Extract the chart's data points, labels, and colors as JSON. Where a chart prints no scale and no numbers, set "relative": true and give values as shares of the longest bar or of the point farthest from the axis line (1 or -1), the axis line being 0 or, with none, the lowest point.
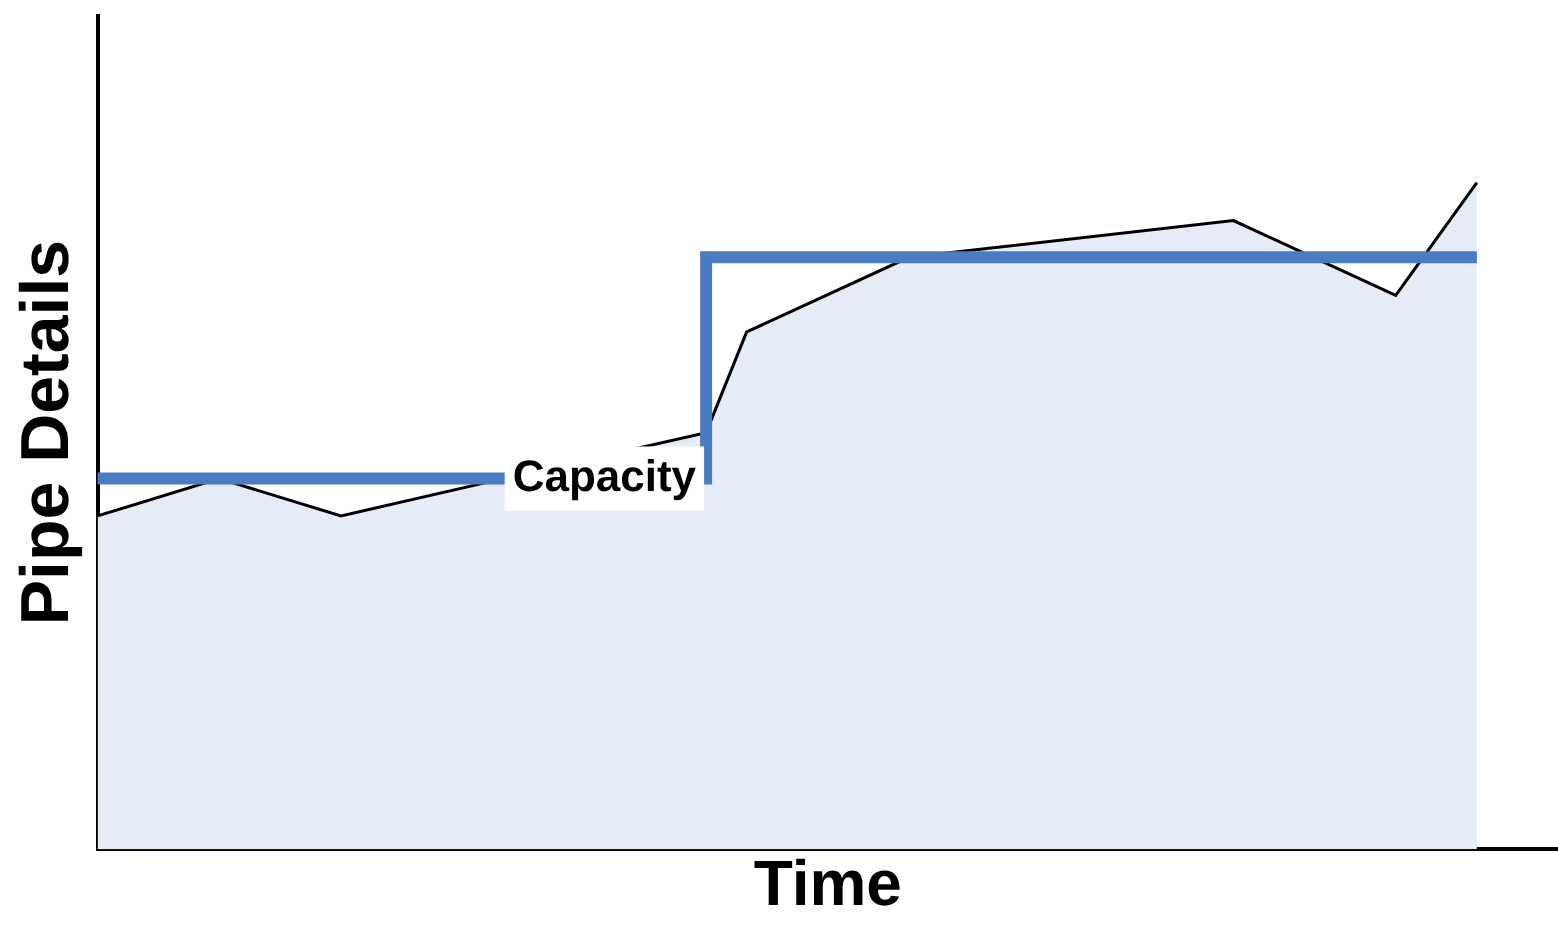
{
  "chart_data": {
    "type": "area",
    "xlabel": "Time",
    "ylabel": "Pipe Details",
    "relative": true,
    "tick_labels": false,
    "grid": false,
    "legend": false,
    "annotations": [
      "Capacity"
    ],
    "categories": [
      null,
      null,
      null,
      null,
      null,
      null,
      null,
      null,
      null,
      null,
      null,
      null,
      null,
      null,
      null,
      null,
      null,
      null,
      null,
      null,
      null,
      null,
      null,
      null,
      null,
      null,
      null,
      null,
      null,
      null,
      null,
      null,
      null,
      null,
      null,
      null,
      null
    ],
    "series": [
      {
        "type": "area",
        "color": "#e6ecf7",
        "values": [
          0.5,
          null,
          null,
          0.556,
          null,
          null,
          0.5,
          null,
          null,
          null,
          0.556,
          null,
          null,
          null,
          null,
          0.625,
          0.776,
          null,
          null,
          null,
          0.888,
          null,
          null,
          null,
          null,
          null,
          null,
          null,
          0.943,
          null,
          null,
          null,
          0.831,
          null,
          1.0,
          null,
          null
        ]
      },
      {
        "type": "step",
        "color": "#4a7cc4",
        "values": [
          0.556,
          null,
          null,
          null,
          null,
          null,
          null,
          null,
          null,
          null,
          null,
          null,
          null,
          null,
          null,
          0.888,
          null,
          null,
          null,
          null,
          null,
          null,
          null,
          null,
          null,
          null,
          null,
          null,
          null,
          null,
          null,
          null,
          null,
          null,
          0.888,
          null,
          null
        ]
      }
    ]
  }
}
